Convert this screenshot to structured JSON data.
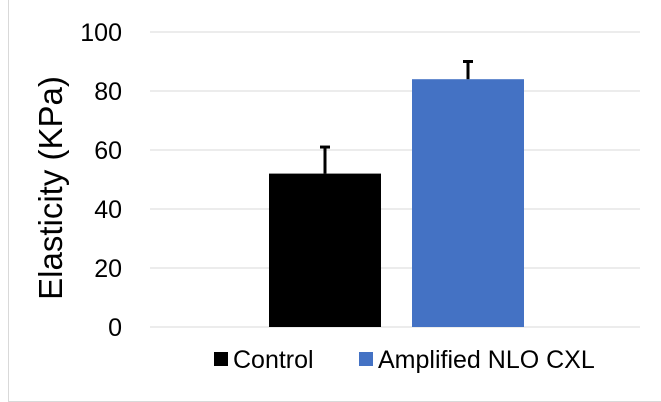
{
  "chart_data": {
    "type": "bar",
    "title": "",
    "xlabel": "",
    "ylabel": "Elasticity (KPa)",
    "ylim": [
      0,
      100
    ],
    "yticks": [
      0,
      20,
      40,
      60,
      80,
      100
    ],
    "grid": true,
    "legend_position": "bottom",
    "series": [
      {
        "name": "Control",
        "value": 52,
        "error": 9,
        "color": "#000000"
      },
      {
        "name": "Amplified NLO CXL",
        "value": 84,
        "error": 6,
        "color": "#4472c4"
      }
    ]
  }
}
